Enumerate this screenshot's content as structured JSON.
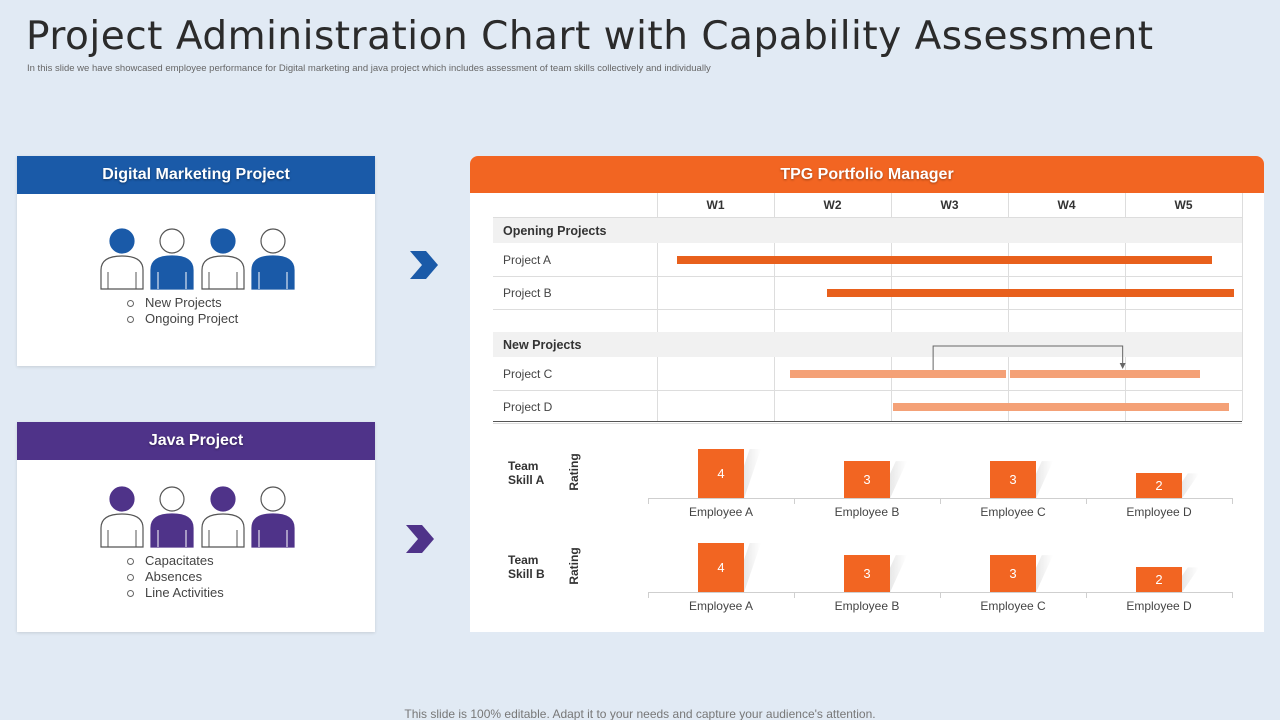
{
  "slide": {
    "title": "Project Administration Chart with Capability Assessment",
    "subtitle": "In this slide we have showcased employee performance for Digital marketing and java project which includes assessment of team skills collectively and individually",
    "footer": "This slide is 100% editable. Adapt it to your needs and capture your audience's attention."
  },
  "digital_card": {
    "header": "Digital Marketing Project",
    "color": "#1a5aa8",
    "bullets": [
      "New Projects",
      "Ongoing Project"
    ]
  },
  "java_card": {
    "header": "Java Project",
    "color": "#4f3389",
    "bullets": [
      "Capacitates",
      "Absences",
      "Line Activities"
    ]
  },
  "panel": {
    "header": "TPG Portfolio Manager",
    "color": "#f26522",
    "weeks": [
      "W1",
      "W2",
      "W3",
      "W4",
      "W5"
    ]
  },
  "gantt": {
    "groups": [
      {
        "label": "Opening Projects",
        "rows": [
          {
            "label": "Project A",
            "start_week": 1.17,
            "end_week": 5.74,
            "color": "#e8601c"
          },
          {
            "label": "Project B",
            "start_week": 2.45,
            "end_week": 5.93,
            "color": "#e8601c"
          }
        ]
      },
      {
        "label": "New Projects",
        "rows": [
          {
            "label": "Project C",
            "start_week": 2.14,
            "end_week": 5.64,
            "color": "#f4a177",
            "split_at_week": 4.0
          },
          {
            "label": "Project D",
            "start_week": 3.02,
            "end_week": 5.89,
            "color": "#f4a177"
          }
        ]
      }
    ],
    "dependency": {
      "from_row": "Project C",
      "from_week": 3.36,
      "to_week": 4.98
    }
  },
  "chart_data": [
    {
      "type": "bar",
      "title": "Team Skill A",
      "ylabel": "Rating",
      "categories": [
        "Employee A",
        "Employee B",
        "Employee C",
        "Employee D"
      ],
      "values": [
        4,
        3,
        3,
        2
      ],
      "color": "#f26522"
    },
    {
      "type": "bar",
      "title": "Team Skill B",
      "ylabel": "Rating",
      "categories": [
        "Employee A",
        "Employee B",
        "Employee C",
        "Employee D"
      ],
      "values": [
        4,
        3,
        3,
        2
      ],
      "color": "#f26522"
    }
  ]
}
